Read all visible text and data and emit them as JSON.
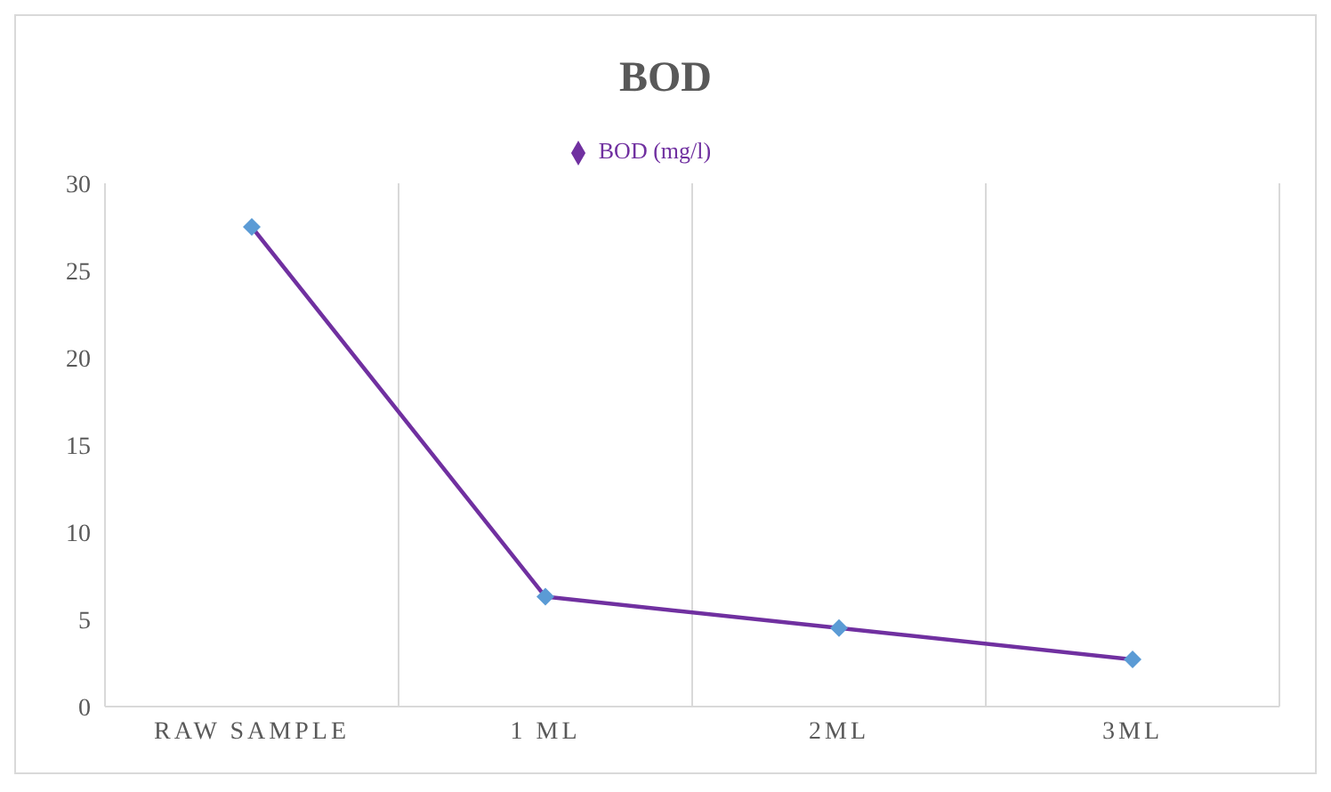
{
  "chart_data": {
    "type": "line",
    "title": "BOD",
    "categories": [
      "RAW SAMPLE",
      "1 ML",
      "2ML",
      "3ML"
    ],
    "series": [
      {
        "name": "BOD (mg/l)",
        "color": "#7030a0",
        "values": [
          27.5,
          6.3,
          4.5,
          2.7
        ]
      }
    ],
    "ylim": [
      0,
      30
    ],
    "yticks": [
      0,
      5,
      10,
      15,
      20,
      25,
      30
    ],
    "grid": "x",
    "legend": "top",
    "marker": "diamond"
  }
}
